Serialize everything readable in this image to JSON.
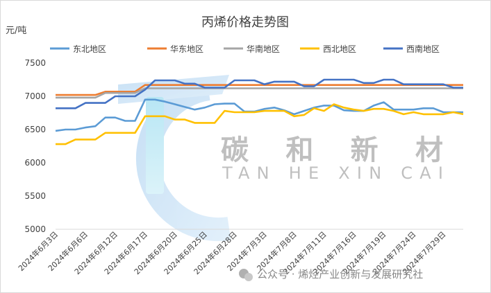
{
  "chart_data": {
    "type": "line",
    "title": "丙烯价格走势图",
    "ylabel": "元/吨",
    "ylim": [
      5000,
      7500
    ],
    "yticks": [
      5000,
      5500,
      6000,
      6500,
      7000,
      7500
    ],
    "grid": false,
    "legend_position": "top",
    "x": [
      "2024年6月3日",
      "2024年6月4日",
      "2024年6月5日",
      "2024年6月6日",
      "2024年6月7日",
      "2024年6月11日",
      "2024年6月12日",
      "2024年6月13日",
      "2024年6月14日",
      "2024年6月17日",
      "2024年6月18日",
      "2024年6月19日",
      "2024年6月20日",
      "2024年6月21日",
      "2024年6月24日",
      "2024年6月25日",
      "2024年6月26日",
      "2024年6月27日",
      "2024年6月28日",
      "2024年7月1日",
      "2024年7月2日",
      "2024年7月3日",
      "2024年7月4日",
      "2024年7月5日",
      "2024年7月8日",
      "2024年7月9日",
      "2024年7月10日",
      "2024年7月11日",
      "2024年7月12日",
      "2024年7月15日",
      "2024年7月16日",
      "2024年7月17日",
      "2024年7月18日",
      "2024年7月19日",
      "2024年7月22日",
      "2024年7月23日",
      "2024年7月24日",
      "2024年7月25日",
      "2024年7月26日",
      "2024年7月29日",
      "2024年7月30日",
      "2024年7月31日"
    ],
    "xtick_labels": [
      "2024年6月3日",
      "2024年6月6日",
      "2024年6月12日",
      "2024年6月17日",
      "2024年6月20日",
      "2024年6月25日",
      "2024年6月28日",
      "2024年7月3日",
      "2024年7月8日",
      "2024年7月11日",
      "2024年7月16日",
      "2024年7月19日",
      "2024年7月24日",
      "2024年7月29日"
    ],
    "series": [
      {
        "name": "东北地区",
        "color": "#5b9bd5",
        "values": [
          6480,
          6500,
          6500,
          6530,
          6550,
          6680,
          6680,
          6630,
          6630,
          6950,
          6950,
          6920,
          6880,
          6840,
          6800,
          6830,
          6880,
          6890,
          6890,
          6770,
          6770,
          6810,
          6830,
          6790,
          6730,
          6780,
          6830,
          6860,
          6860,
          6790,
          6780,
          6780,
          6860,
          6910,
          6800,
          6800,
          6800,
          6820,
          6820,
          6760,
          6760,
          6760
        ]
      },
      {
        "name": "华东地区",
        "color": "#ed7d31",
        "values": [
          7020,
          7020,
          7020,
          7020,
          7020,
          7070,
          7070,
          7070,
          7070,
          7170,
          7170,
          7170,
          7170,
          7170,
          7170,
          7170,
          7170,
          7170,
          7170,
          7170,
          7170,
          7170,
          7170,
          7170,
          7170,
          7170,
          7170,
          7170,
          7170,
          7170,
          7170,
          7170,
          7170,
          7170,
          7170,
          7170,
          7170,
          7170,
          7170,
          7170,
          7170,
          7170
        ]
      },
      {
        "name": "华南地区",
        "color": "#a5a5a5",
        "values": [
          6980,
          6980,
          6980,
          6980,
          6980,
          7050,
          7050,
          7050,
          7050,
          7120,
          7120,
          7120,
          7120,
          7120,
          7120,
          7120,
          7120,
          7120,
          7120,
          7120,
          7120,
          7120,
          7120,
          7120,
          7120,
          7120,
          7120,
          7120,
          7120,
          7120,
          7120,
          7120,
          7120,
          7120,
          7120,
          7120,
          7120,
          7120,
          7120,
          7120,
          7120,
          7120
        ]
      },
      {
        "name": "西北地区",
        "color": "#ffc000",
        "values": [
          6280,
          6280,
          6350,
          6350,
          6350,
          6450,
          6450,
          6450,
          6450,
          6700,
          6700,
          6700,
          6650,
          6650,
          6600,
          6600,
          6600,
          6780,
          6760,
          6760,
          6760,
          6780,
          6780,
          6780,
          6700,
          6720,
          6820,
          6780,
          6880,
          6830,
          6800,
          6780,
          6810,
          6810,
          6780,
          6730,
          6760,
          6730,
          6730,
          6730,
          6760,
          6730
        ]
      },
      {
        "name": "西南地区",
        "color": "#4472c4",
        "values": [
          6820,
          6820,
          6820,
          6900,
          6900,
          6900,
          7000,
          7000,
          7000,
          7100,
          7240,
          7240,
          7240,
          7190,
          7190,
          7130,
          7130,
          7130,
          7240,
          7240,
          7240,
          7180,
          7220,
          7220,
          7220,
          7150,
          7150,
          7250,
          7250,
          7250,
          7250,
          7200,
          7200,
          7250,
          7250,
          7180,
          7180,
          7180,
          7180,
          7180,
          7130,
          7130
        ]
      }
    ]
  },
  "watermark": {
    "chinese": "碳 和 新 材",
    "english": "TAN HE XIN CAI"
  },
  "footer": {
    "text": "公众号 · 烯烃产业创新与发展研究社"
  }
}
